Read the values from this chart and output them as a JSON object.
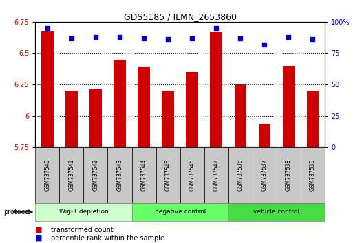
{
  "title": "GDS5185 / ILMN_2653860",
  "samples": [
    "GSM737540",
    "GSM737541",
    "GSM737542",
    "GSM737543",
    "GSM737544",
    "GSM737545",
    "GSM737546",
    "GSM737547",
    "GSM737536",
    "GSM737537",
    "GSM737538",
    "GSM737539"
  ],
  "bar_values": [
    6.68,
    6.2,
    6.21,
    6.45,
    6.39,
    6.2,
    6.35,
    6.67,
    6.25,
    5.94,
    6.4,
    6.2
  ],
  "percentile_values": [
    95,
    87,
    88,
    88,
    87,
    86,
    87,
    95,
    87,
    82,
    88,
    86
  ],
  "bar_color": "#cc0000",
  "dot_color": "#0000cc",
  "ylim_left": [
    5.75,
    6.75
  ],
  "ylim_right": [
    0,
    100
  ],
  "yticks_left": [
    5.75,
    6.0,
    6.25,
    6.5,
    6.75
  ],
  "ytick_labels_left": [
    "5.75",
    "6",
    "6.25",
    "6.5",
    "6.75"
  ],
  "yticks_right": [
    0,
    25,
    50,
    75,
    100
  ],
  "ytick_labels_right": [
    "0",
    "25",
    "50",
    "75",
    "100%"
  ],
  "groups": [
    {
      "label": "Wig-1 depletion",
      "start": 0,
      "end": 3,
      "color": "#ccffcc"
    },
    {
      "label": "negative control",
      "start": 4,
      "end": 7,
      "color": "#66ff66"
    },
    {
      "label": "vehicle control",
      "start": 8,
      "end": 11,
      "color": "#44dd44"
    }
  ],
  "protocol_label": "protocol",
  "legend_bar_label": "transformed count",
  "legend_dot_label": "percentile rank within the sample",
  "tick_label_color_left": "#cc0000",
  "tick_label_color_right": "#0000cc",
  "background_color": "#ffffff",
  "bar_width": 0.5,
  "grid_yticks": [
    6.0,
    6.25,
    6.5
  ],
  "xtick_bg_color": "#c8c8c8"
}
